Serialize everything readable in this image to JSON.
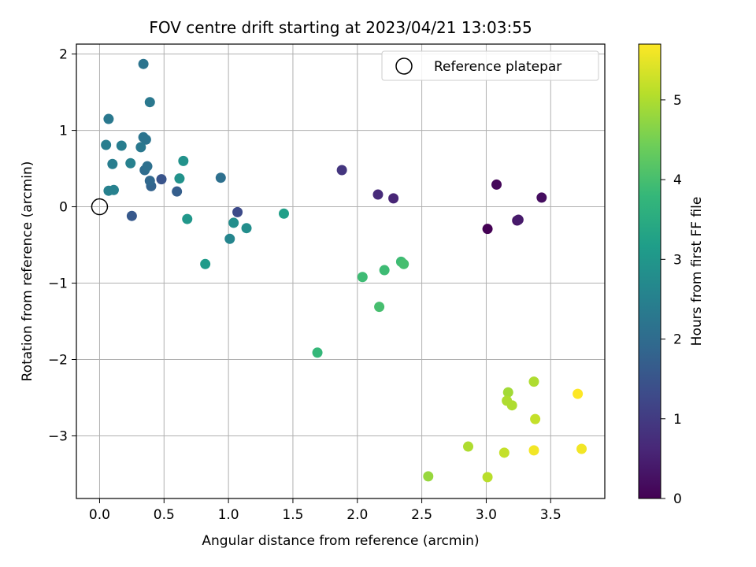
{
  "chart_data": {
    "type": "scatter",
    "title": "FOV centre drift starting at 2023/04/21 13:03:55",
    "xlabel": "Angular distance from reference (arcmin)",
    "ylabel": "Rotation from reference (arcmin)",
    "xlim": [
      -0.18,
      3.92
    ],
    "ylim": [
      -3.82,
      2.13
    ],
    "x_ticks": [
      0.0,
      0.5,
      1.0,
      1.5,
      2.0,
      2.5,
      3.0,
      3.5
    ],
    "x_tick_labels": [
      "0.0",
      "0.5",
      "1.0",
      "1.5",
      "2.0",
      "2.5",
      "3.0",
      "3.5"
    ],
    "y_ticks": [
      -3,
      -2,
      -1,
      0,
      1,
      2
    ],
    "y_tick_labels": [
      "−3",
      "−2",
      "−1",
      "0",
      "1",
      "2"
    ],
    "grid": true,
    "legend": {
      "placement": "top-right",
      "entries": [
        {
          "label": "Reference platepar",
          "marker": "open-circle"
        }
      ]
    },
    "reference_point": {
      "x": 0.0,
      "y": 0.0,
      "label": "Reference platepar"
    },
    "colorbar": {
      "label": "Hours from first FF file",
      "colormap": "viridis",
      "range": [
        0,
        5.7
      ],
      "ticks": [
        0,
        1,
        2,
        3,
        4,
        5
      ],
      "tick_labels": [
        "0",
        "1",
        "2",
        "3",
        "4",
        "5"
      ]
    },
    "points": [
      {
        "x": 3.01,
        "y": -0.29,
        "c": 0.0
      },
      {
        "x": 3.08,
        "y": 0.29,
        "c": 0.1
      },
      {
        "x": 3.43,
        "y": 0.12,
        "c": 0.2
      },
      {
        "x": 3.24,
        "y": -0.18,
        "c": 0.3
      },
      {
        "x": 3.25,
        "y": -0.17,
        "c": 0.4
      },
      {
        "x": 2.28,
        "y": 0.11,
        "c": 0.6
      },
      {
        "x": 2.16,
        "y": 0.16,
        "c": 0.7
      },
      {
        "x": 1.88,
        "y": 0.48,
        "c": 0.9
      },
      {
        "x": 1.07,
        "y": -0.07,
        "c": 1.3
      },
      {
        "x": 0.48,
        "y": 0.36,
        "c": 1.5
      },
      {
        "x": 0.25,
        "y": -0.12,
        "c": 1.6
      },
      {
        "x": 0.6,
        "y": 0.2,
        "c": 1.7
      },
      {
        "x": 0.4,
        "y": 0.27,
        "c": 1.8
      },
      {
        "x": 0.39,
        "y": 0.34,
        "c": 1.9
      },
      {
        "x": 0.35,
        "y": 0.48,
        "c": 2.0
      },
      {
        "x": 0.37,
        "y": 0.53,
        "c": 2.1
      },
      {
        "x": 0.34,
        "y": 0.91,
        "c": 2.2
      },
      {
        "x": 0.36,
        "y": 0.88,
        "c": 2.2
      },
      {
        "x": 0.32,
        "y": 0.78,
        "c": 2.3
      },
      {
        "x": 0.34,
        "y": 1.87,
        "c": 2.2
      },
      {
        "x": 0.39,
        "y": 1.37,
        "c": 2.3
      },
      {
        "x": 0.07,
        "y": 1.15,
        "c": 2.3
      },
      {
        "x": 0.05,
        "y": 0.81,
        "c": 2.4
      },
      {
        "x": 0.17,
        "y": 0.8,
        "c": 2.4
      },
      {
        "x": 0.1,
        "y": 0.56,
        "c": 2.4
      },
      {
        "x": 0.24,
        "y": 0.57,
        "c": 2.5
      },
      {
        "x": 0.07,
        "y": 0.21,
        "c": 2.5
      },
      {
        "x": 0.11,
        "y": 0.22,
        "c": 2.5
      },
      {
        "x": 0.94,
        "y": 0.38,
        "c": 2.1
      },
      {
        "x": 1.04,
        "y": -0.21,
        "c": 2.8
      },
      {
        "x": 1.01,
        "y": -0.42,
        "c": 2.6
      },
      {
        "x": 1.14,
        "y": -0.28,
        "c": 2.8
      },
      {
        "x": 0.65,
        "y": 0.6,
        "c": 2.9
      },
      {
        "x": 0.62,
        "y": 0.37,
        "c": 2.9
      },
      {
        "x": 0.68,
        "y": -0.16,
        "c": 3.0
      },
      {
        "x": 0.82,
        "y": -0.75,
        "c": 3.1
      },
      {
        "x": 1.43,
        "y": -0.09,
        "c": 3.2
      },
      {
        "x": 1.69,
        "y": -1.91,
        "c": 3.8
      },
      {
        "x": 2.17,
        "y": -1.31,
        "c": 4.0
      },
      {
        "x": 2.04,
        "y": -0.92,
        "c": 3.9
      },
      {
        "x": 2.21,
        "y": -0.83,
        "c": 3.9
      },
      {
        "x": 2.34,
        "y": -0.72,
        "c": 3.9
      },
      {
        "x": 2.36,
        "y": -0.75,
        "c": 4.0
      },
      {
        "x": 2.55,
        "y": -3.53,
        "c": 4.8
      },
      {
        "x": 2.86,
        "y": -3.14,
        "c": 5.0
      },
      {
        "x": 3.01,
        "y": -3.54,
        "c": 5.1
      },
      {
        "x": 3.14,
        "y": -3.22,
        "c": 5.2
      },
      {
        "x": 3.17,
        "y": -2.43,
        "c": 4.9
      },
      {
        "x": 3.16,
        "y": -2.54,
        "c": 5.0
      },
      {
        "x": 3.2,
        "y": -2.6,
        "c": 5.0
      },
      {
        "x": 3.37,
        "y": -2.29,
        "c": 5.0
      },
      {
        "x": 3.38,
        "y": -2.78,
        "c": 5.2
      },
      {
        "x": 3.37,
        "y": -3.19,
        "c": 5.6
      },
      {
        "x": 3.71,
        "y": -2.45,
        "c": 5.7
      },
      {
        "x": 3.74,
        "y": -3.17,
        "c": 5.6
      }
    ]
  }
}
